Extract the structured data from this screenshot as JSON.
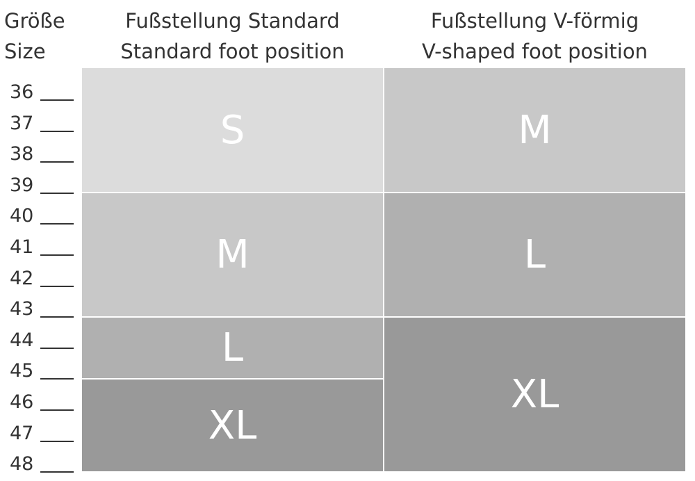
{
  "header": {
    "size_label_de": "Größe",
    "size_label_en": "Size",
    "columns": [
      {
        "title_de": "Fußstellung Standard",
        "title_en": "Standard foot position"
      },
      {
        "title_de": "Fußstellung V-förmig",
        "title_en": "V-shaped foot position"
      }
    ]
  },
  "sizes": [
    36,
    37,
    38,
    39,
    40,
    41,
    42,
    43,
    44,
    45,
    46,
    47,
    48
  ],
  "columns": [
    {
      "blocks": [
        "S",
        "M",
        "L",
        "XL"
      ]
    },
    {
      "blocks": [
        "M",
        "L",
        "XL"
      ]
    }
  ]
}
